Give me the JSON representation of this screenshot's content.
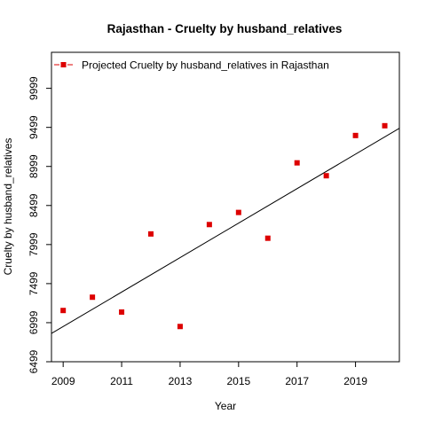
{
  "chart_data": {
    "type": "scatter",
    "title": "Rajasthan  -  Cruelty by husband_relatives",
    "xlabel": "Year",
    "ylabel": "Cruelty by husband_relatives",
    "xlim": [
      2008.6,
      2020.5
    ],
    "ylim": [
      6499,
      10460
    ],
    "x_ticks": [
      2009,
      2011,
      2013,
      2015,
      2017,
      2019
    ],
    "y_ticks": [
      6499,
      6999,
      7499,
      7999,
      8499,
      8999,
      9499,
      9999
    ],
    "legend": {
      "position": "top-left",
      "label": "Projected  Cruelty by husband_relatives  in  Rajasthan"
    },
    "series": [
      {
        "name": "Projected  Cruelty by husband_relatives  in  Rajasthan",
        "color": "#dd0000",
        "marker": "square",
        "x": [
          2009,
          2010,
          2011,
          2012,
          2013,
          2014,
          2015,
          2016,
          2017,
          2018,
          2019,
          2020
        ],
        "y": [
          7155,
          7325,
          7135,
          8135,
          6950,
          8255,
          8410,
          8080,
          9045,
          8880,
          9395,
          9520
        ]
      }
    ],
    "trend_line": {
      "x": [
        2008.6,
        2020.5
      ],
      "y": [
        6861,
        9487
      ]
    },
    "grid": false
  }
}
